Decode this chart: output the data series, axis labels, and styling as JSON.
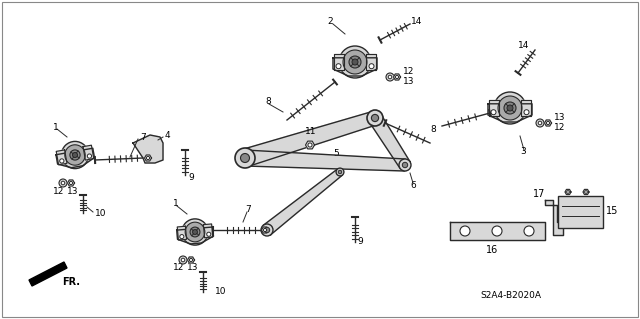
{
  "diagram_code": "S2A4-B2020A",
  "background_color": "#ffffff",
  "line_color": "#2a2a2a",
  "text_color": "#000000",
  "fig_width": 6.4,
  "fig_height": 3.19,
  "dpi": 100
}
